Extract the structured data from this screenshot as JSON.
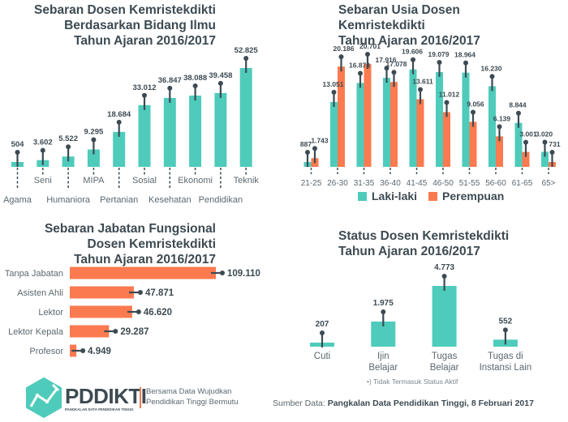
{
  "colors": {
    "teal": "#4ecbbb",
    "orange": "#fb7a4f",
    "dark": "#3d4a52",
    "text": "#5c6870"
  },
  "chart_data": [
    {
      "id": "bidang",
      "type": "bar",
      "title_lines": [
        "Sebaran Dosen Kemristekdikti",
        "Berdasarkan Bidang Ilmu",
        "Tahun Ajaran 2016/2017"
      ],
      "categories": [
        "Agama",
        "Seni",
        "Humaniora",
        "MIPA",
        "Pertanian",
        "Sosial",
        "Kesehatan",
        "Ekonomi",
        "Pendidikan",
        "Teknik"
      ],
      "values": [
        504,
        3602,
        5522,
        9295,
        18684,
        33012,
        36847,
        38088,
        39458,
        52825
      ],
      "value_labels": [
        "504",
        "3.602",
        "5.522",
        "9.295",
        "18.684",
        "33.012",
        "36.847",
        "38.088",
        "39.458",
        "52.825"
      ],
      "xlabel": "",
      "ylabel": ""
    },
    {
      "id": "usia",
      "type": "bar",
      "title_lines": [
        "Sebaran Usia Dosen",
        "Kemristekdikti",
        "Tahun Ajaran 2016/2017"
      ],
      "categories": [
        "21-25",
        "26-30",
        "31-35",
        "36-40",
        "41-45",
        "46-50",
        "51-55",
        "56-60",
        "61-65",
        "65>"
      ],
      "series": [
        {
          "name": "Laki-laki",
          "values": [
            887,
            13051,
            16878,
            17916,
            19606,
            19079,
            18964,
            16230,
            8844,
            3020
          ],
          "value_labels": [
            "887",
            "13.051",
            "16.878",
            "17.916",
            "19.606",
            "19.079",
            "18.964",
            "16.230",
            "8.844",
            "3.020"
          ]
        },
        {
          "name": "Perempuan",
          "values": [
            1743,
            20186,
            20701,
            17078,
            13611,
            11012,
            9056,
            6139,
            3001,
            731
          ],
          "value_labels": [
            "1.743",
            "20.186",
            "20.701",
            "17.078",
            "13.611",
            "11.012",
            "9.056",
            "6.139",
            "3.001",
            "731"
          ]
        }
      ],
      "legend": [
        "Laki-laki",
        "Perempuan"
      ],
      "legend_position": "bottom"
    },
    {
      "id": "jabatan",
      "type": "bar",
      "orientation": "horizontal",
      "title_lines": [
        "Sebaran Jabatan Fungsional",
        "Dosen Kemristekdikti",
        "Tahun Ajaran 2016/2017"
      ],
      "categories": [
        "Tanpa Jabatan",
        "Asisten Ahli",
        "Lektor",
        "Lektor Kepala",
        "Profesor"
      ],
      "values": [
        109110,
        47871,
        46620,
        29287,
        4949
      ],
      "value_labels": [
        "109.110",
        "47.871",
        "46.620",
        "29.287",
        "4.949"
      ]
    },
    {
      "id": "status",
      "type": "bar",
      "title_lines": [
        "Status Dosen Kemristekdikti",
        "Tahun Ajaran 2016/2017"
      ],
      "categories": [
        [
          "Cuti"
        ],
        [
          "Ijin",
          "Belajar"
        ],
        [
          "Tugas",
          "Belajar"
        ],
        [
          "Tugas di",
          "Instansi Lain"
        ]
      ],
      "values": [
        207,
        1975,
        4773,
        552
      ],
      "value_labels": [
        "207",
        "1.975",
        "4.773",
        "552"
      ],
      "note": "•) Tidak Termasuk Status Aktif"
    }
  ],
  "footer": {
    "logo_name": "PDDIKTI",
    "logo_subtitle": "PANGKALAN DATA PENDIDIKAN TINGGI",
    "tagline_lines": [
      "Bersama Data Wujudkan",
      "Pendidikan Tinggi Bermutu"
    ],
    "source_prefix": "Sumber Data: ",
    "source_bold": "Pangkalan Data Pendidikan Tinggi, 8 Februari 2017"
  }
}
